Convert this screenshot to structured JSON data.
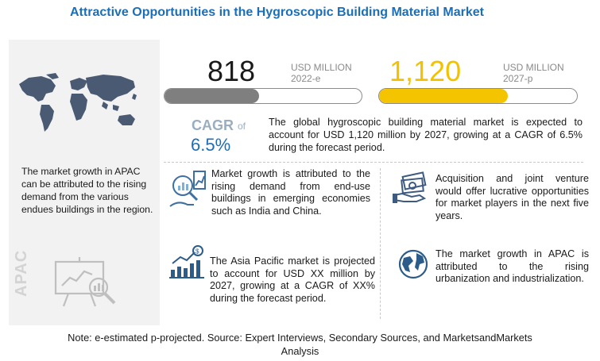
{
  "title": "Attractive Opportunities in the Hygroscopic Building Material Market",
  "market_2022": {
    "value": "818",
    "unit": "USD MILLION",
    "period": "2022-e"
  },
  "market_2027": {
    "value": "1,120",
    "unit": "USD MILLION",
    "period": "2027-p"
  },
  "cagr": {
    "label": "CAGR",
    "of": "of",
    "value": "6.5%"
  },
  "summary": "The global hygroscopic building material market is expected to account for USD 1,120 million by 2027, growing at a CAGR of 6.5% during the forecast period.",
  "left_panel": {
    "text": "The market growth in APAC can be attributed to the rising demand from the various endues buildings in the region.",
    "region_label": "APAC"
  },
  "cards": [
    {
      "text": "Market growth is attributed to the rising demand from end-use buildings in emerging economies such as India and China.",
      "icon": "market-growth-analytics-icon"
    },
    {
      "text": "Acquisition and joint venture would offer lucrative opportunities for market players in the next five years.",
      "icon": "money-opportunity-icon"
    },
    {
      "text": "The Asia Pacific market is projected to account for USD XX million by 2027, growing at a CAGR of XX% during the forecast period.",
      "icon": "revenue-growth-chart-icon"
    },
    {
      "text": "The market growth in APAC is attributed to the rising urbanization and industrialization.",
      "icon": "globe-icon"
    }
  ],
  "footnote": {
    "line1": "Note: e-estimated p-projected. Source: Expert Interviews, Secondary Sources, and MarketsandMarkets",
    "line2": "Analysis"
  },
  "colors": {
    "title": "#1b6fb8",
    "bar_2022": "#7f7f7f",
    "bar_2027": "#f5c400",
    "value_2027": "#f2c200",
    "cagr_value": "#1b6fb8"
  },
  "chart_data": {
    "type": "bar",
    "categories": [
      "2022-e",
      "2027-p"
    ],
    "values": [
      818,
      1120
    ],
    "unit": "USD MILLION",
    "fill_fraction": [
      0.48,
      0.65
    ],
    "cagr": "6.5%"
  }
}
